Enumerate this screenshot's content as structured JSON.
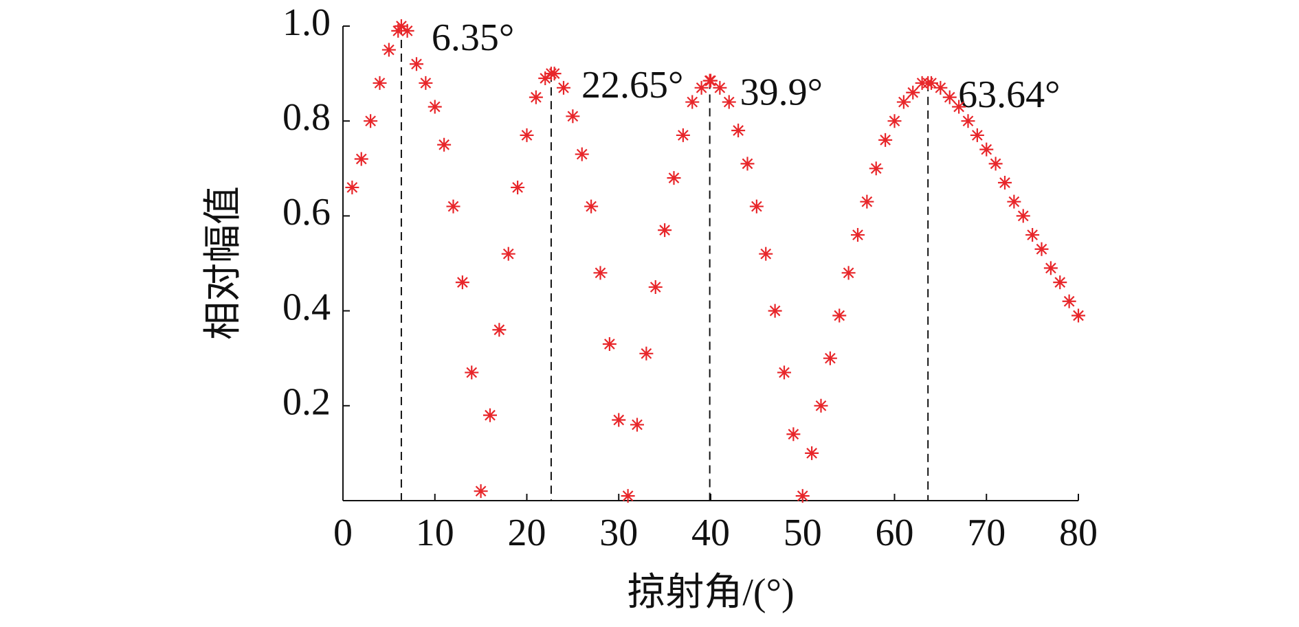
{
  "chart_data": {
    "type": "scatter",
    "marker": "asterisk",
    "color": "#e8262a",
    "x_label": "掠射角/(°)",
    "y_label": "相对幅值",
    "xlim": [
      0,
      80
    ],
    "xticks": [
      0,
      10,
      20,
      30,
      40,
      50,
      60,
      70,
      80
    ],
    "ylim": [
      0,
      1.0
    ],
    "yticks": [
      0.2,
      0.4,
      0.6,
      0.8,
      {
        "value": 1.0,
        "label": "1.0"
      }
    ],
    "x": [
      1,
      2,
      3,
      4,
      5,
      6,
      6.35,
      7,
      8,
      9,
      10,
      11,
      12,
      13,
      14,
      15,
      16,
      17,
      18,
      19,
      20,
      21,
      22,
      22.65,
      23,
      24,
      25,
      26,
      27,
      28,
      29,
      30,
      31,
      32,
      33,
      34,
      35,
      36,
      37,
      38,
      39,
      39.9,
      40,
      41,
      42,
      43,
      44,
      45,
      46,
      47,
      48,
      49,
      50,
      51,
      52,
      53,
      54,
      55,
      56,
      57,
      58,
      59,
      60,
      61,
      62,
      63,
      63.64,
      64,
      65,
      66,
      67,
      68,
      69,
      70,
      71,
      72,
      73,
      74,
      75,
      76,
      77,
      78,
      79,
      80
    ],
    "values": [
      0.66,
      0.72,
      0.8,
      0.88,
      0.95,
      0.99,
      1.0,
      0.99,
      0.92,
      0.88,
      0.83,
      0.75,
      0.62,
      0.46,
      0.27,
      0.02,
      0.18,
      0.36,
      0.52,
      0.66,
      0.77,
      0.85,
      0.89,
      0.9,
      0.9,
      0.87,
      0.81,
      0.73,
      0.62,
      0.48,
      0.33,
      0.17,
      0.01,
      0.16,
      0.31,
      0.45,
      0.57,
      0.68,
      0.77,
      0.84,
      0.87,
      0.885,
      0.885,
      0.87,
      0.84,
      0.78,
      0.71,
      0.62,
      0.52,
      0.4,
      0.27,
      0.14,
      0.01,
      0.1,
      0.2,
      0.3,
      0.39,
      0.48,
      0.56,
      0.63,
      0.7,
      0.76,
      0.8,
      0.84,
      0.86,
      0.88,
      0.88,
      0.88,
      0.87,
      0.85,
      0.83,
      0.8,
      0.77,
      0.74,
      0.71,
      0.67,
      0.63,
      0.6,
      0.56,
      0.53,
      0.49,
      0.46,
      0.42,
      0.39
    ],
    "annotations": [
      {
        "text": "6.35°",
        "x": 6.35,
        "y": 1.0
      },
      {
        "text": "22.65°",
        "x": 22.65,
        "y": 0.9
      },
      {
        "text": "39.9°",
        "x": 39.9,
        "y": 0.885
      },
      {
        "text": "63.64°",
        "x": 63.64,
        "y": 0.88
      }
    ]
  }
}
